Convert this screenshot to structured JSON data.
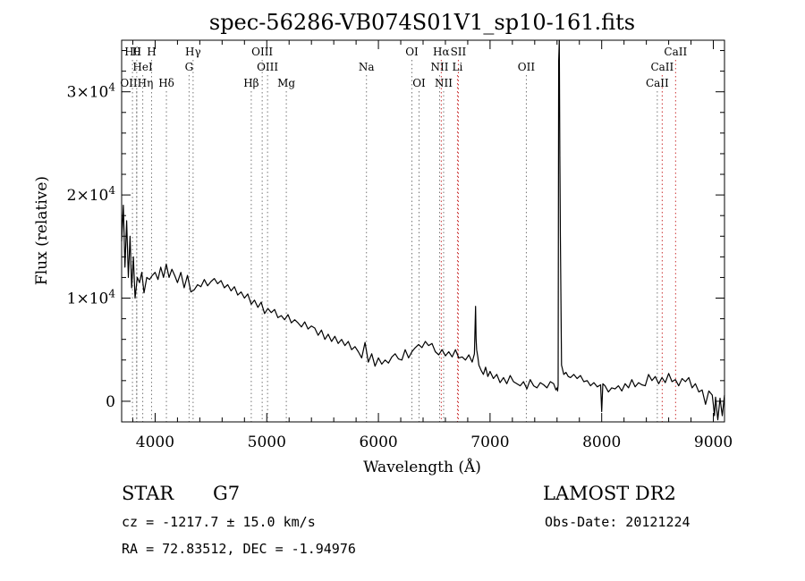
{
  "chart_data": {
    "type": "line",
    "title": "spec-56286-VB074S01V1_sp10-161.fits",
    "xlabel": "Wavelength (Å)",
    "ylabel": "Flux (relative)",
    "xlim": [
      3700,
      9100
    ],
    "ylim": [
      -2000,
      35000
    ],
    "grid": false,
    "x_ticks": [
      {
        "value": 4000,
        "label": "4000"
      },
      {
        "value": 5000,
        "label": "5000"
      },
      {
        "value": 6000,
        "label": "6000"
      },
      {
        "value": 7000,
        "label": "7000"
      },
      {
        "value": 8000,
        "label": "8000"
      },
      {
        "value": 9000,
        "label": "9000"
      }
    ],
    "y_ticks": [
      {
        "value": 0,
        "label": "0"
      },
      {
        "value": 10000,
        "mantissa": "1",
        "exponent": "4"
      },
      {
        "value": 20000,
        "mantissa": "2",
        "exponent": "4"
      },
      {
        "value": 30000,
        "mantissa": "3",
        "exponent": "4"
      }
    ],
    "series": [
      {
        "x": [
          3700,
          3715,
          3730,
          3745,
          3760,
          3775,
          3790,
          3805,
          3820,
          3840,
          3860,
          3880,
          3900,
          3925,
          3950,
          3975,
          4000,
          4025,
          4050,
          4075,
          4100,
          4125,
          4150,
          4175,
          4200,
          4230,
          4260,
          4290,
          4320,
          4350,
          4380,
          4410,
          4440,
          4470,
          4500,
          4530,
          4560,
          4590,
          4620,
          4650,
          4680,
          4710,
          4740,
          4770,
          4800,
          4830,
          4861,
          4890,
          4920,
          4950,
          4980,
          5010,
          5040,
          5070,
          5100,
          5130,
          5160,
          5190,
          5220,
          5250,
          5280,
          5310,
          5340,
          5370,
          5400,
          5430,
          5460,
          5490,
          5520,
          5550,
          5580,
          5610,
          5640,
          5670,
          5700,
          5730,
          5760,
          5790,
          5820,
          5850,
          5880,
          5910,
          5940,
          5970,
          6000,
          6030,
          6060,
          6090,
          6120,
          6150,
          6180,
          6210,
          6240,
          6270,
          6300,
          6330,
          6360,
          6390,
          6420,
          6450,
          6480,
          6510,
          6540,
          6570,
          6600,
          6630,
          6660,
          6690,
          6720,
          6750,
          6780,
          6810,
          6840,
          6860,
          6870,
          6875,
          6880,
          6890,
          6900,
          6920,
          6940,
          6960,
          6980,
          7000,
          7030,
          7060,
          7090,
          7120,
          7150,
          7180,
          7210,
          7240,
          7270,
          7300,
          7330,
          7360,
          7390,
          7420,
          7450,
          7480,
          7510,
          7540,
          7570,
          7590,
          7600,
          7605,
          7610,
          7615,
          7620,
          7625,
          7630,
          7640,
          7660,
          7680,
          7700,
          7720,
          7750,
          7780,
          7810,
          7840,
          7870,
          7900,
          7930,
          7960,
          7990,
          8000,
          8010,
          8030,
          8060,
          8090,
          8120,
          8150,
          8180,
          8210,
          8240,
          8270,
          8300,
          8330,
          8360,
          8390,
          8420,
          8450,
          8480,
          8510,
          8540,
          8570,
          8600,
          8630,
          8660,
          8690,
          8720,
          8750,
          8780,
          8810,
          8840,
          8870,
          8900,
          8930,
          8960,
          8990,
          9000,
          9010,
          9020,
          9040,
          9060,
          9080,
          9100
        ],
        "y": [
          15500,
          19000,
          13000,
          17500,
          12000,
          16000,
          11000,
          14000,
          10000,
          12000,
          11500,
          12500,
          10500,
          12000,
          11800,
          12200,
          12500,
          11800,
          13000,
          12000,
          13300,
          12000,
          12800,
          12200,
          11500,
          12500,
          11000,
          12200,
          10600,
          10800,
          11300,
          11100,
          11800,
          11200,
          11600,
          11900,
          11400,
          11700,
          11000,
          11300,
          10700,
          11100,
          10300,
          10600,
          10000,
          10400,
          9400,
          9800,
          9100,
          9600,
          8500,
          9000,
          8600,
          8900,
          8100,
          8300,
          7900,
          8400,
          7600,
          7900,
          7600,
          7200,
          7700,
          7000,
          7300,
          7100,
          6400,
          6900,
          6000,
          6500,
          5800,
          6300,
          5600,
          6000,
          5400,
          5800,
          5000,
          5300,
          4800,
          4200,
          5700,
          3800,
          4600,
          3400,
          4200,
          3600,
          4000,
          3700,
          4300,
          4600,
          4100,
          4000,
          5000,
          4200,
          4800,
          5200,
          5500,
          5200,
          5800,
          5400,
          5600,
          4800,
          4500,
          5000,
          4400,
          4800,
          4300,
          5000,
          4200,
          4300,
          4000,
          4500,
          3800,
          4600,
          9200,
          6000,
          5000,
          4300,
          3500,
          3000,
          2600,
          3300,
          2400,
          2900,
          2200,
          2600,
          1800,
          2300,
          1700,
          2500,
          1900,
          1700,
          1500,
          1900,
          1200,
          2100,
          1500,
          1300,
          1800,
          1600,
          1300,
          1900,
          1700,
          1100,
          1300,
          1000,
          1600,
          33000,
          35500,
          24000,
          16000,
          3500,
          2600,
          2800,
          2400,
          2300,
          2600,
          2200,
          2500,
          1900,
          2000,
          1500,
          1800,
          1400,
          1600,
          -1000,
          1700,
          1500,
          900,
          1300,
          1200,
          1500,
          1000,
          1700,
          1300,
          2100,
          1400,
          1800,
          1600,
          1500,
          2600,
          2000,
          2400,
          1700,
          2300,
          1800,
          2700,
          1900,
          2100,
          1500,
          2200,
          1900,
          2300,
          1300,
          1700,
          900,
          1100,
          -300,
          1000,
          600,
          -300,
          -1400,
          400,
          -1800,
          300,
          -1400,
          600
        ]
      }
    ],
    "line_markers": [
      {
        "label": "Hθ",
        "x": 3797,
        "row": 0
      },
      {
        "label": "H",
        "x": 3835,
        "row": 0
      },
      {
        "label": "HeI",
        "x": 3889,
        "row": 1
      },
      {
        "label": "OIIHη",
        "x": 3835,
        "row": 2
      },
      {
        "label": "H",
        "x": 3968,
        "row": 0
      },
      {
        "label": "Hδ",
        "x": 4101,
        "row": 2
      },
      {
        "label": "Hγ",
        "x": 4340,
        "row": 0
      },
      {
        "label": "G",
        "x": 4304,
        "row": 1
      },
      {
        "label": "Hβ",
        "x": 4861,
        "row": 2
      },
      {
        "label": "OIII",
        "x": 4959,
        "row": 0
      },
      {
        "label": "OIII",
        "x": 5007,
        "row": 1
      },
      {
        "label": "Mg",
        "x": 5175,
        "row": 2
      },
      {
        "label": "Na",
        "x": 5893,
        "row": 1
      },
      {
        "label": "OI",
        "x": 6300,
        "row": 0
      },
      {
        "label": "OI",
        "x": 6364,
        "row": 2
      },
      {
        "label": "Hα",
        "x": 6563,
        "row": 0
      },
      {
        "label": "SII",
        "x": 6716,
        "row": 0
      },
      {
        "label": "NII",
        "x": 6548,
        "row": 1
      },
      {
        "label": "Li",
        "x": 6708,
        "row": 1
      },
      {
        "label": "NII",
        "x": 6584,
        "row": 2
      },
      {
        "label": "OII",
        "x": 7325,
        "row": 1
      },
      {
        "label": "CaII",
        "x": 8662,
        "row": 0
      },
      {
        "label": "CaII",
        "x": 8542,
        "row": 1
      },
      {
        "label": "CaII",
        "x": 8498,
        "row": 2
      }
    ]
  },
  "info": {
    "object_class": "STAR",
    "subclass": "G7",
    "survey": "LAMOST DR2",
    "redshift_line": "cz = -1217.7 ± 15.0 km/s",
    "obs_date_line": "Obs-Date: 20121224",
    "coords_line": "RA =  72.83512, DEC =  -1.94976"
  }
}
